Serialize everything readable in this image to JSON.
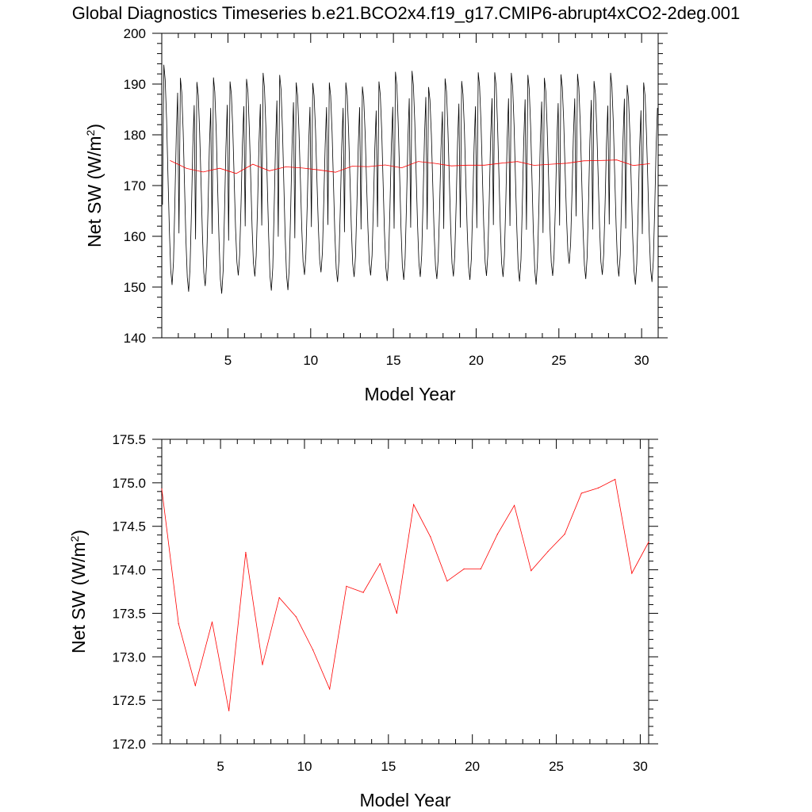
{
  "chart_data": [
    {
      "id": "monthly",
      "type": "line",
      "title": "Global Diagnostics Timeseries b.e21.BCO2x4.f19_g17.CMIP6-abrupt4xCO2-2deg.001",
      "xlabel": "Model Year",
      "ylabel": "Net SW (W/m2)",
      "xlim": [
        1.0,
        31.0
      ],
      "ylim": [
        140,
        200
      ],
      "xticks": [
        5,
        10,
        15,
        20,
        25,
        30
      ],
      "yticks": [
        140,
        150,
        160,
        170,
        180,
        190,
        200
      ],
      "grid": false,
      "series": [
        {
          "color": "#000000",
          "kind": "monthly",
          "peaks": [
            193.8,
            191.2,
            190.4,
            191.3,
            190.5,
            191.0,
            192.2,
            191.8,
            190.3,
            190.2,
            190.3,
            190.3,
            189.5,
            190.5,
            192.4,
            192.6,
            189.4,
            191.1,
            190.6,
            192.3,
            192.3,
            192.2,
            191.8,
            191.2,
            191.9,
            192.0,
            190.6,
            192.2,
            189.8,
            190.3
          ],
          "troughs": [
            150.4,
            149.1,
            150.2,
            148.7,
            152.3,
            152.1,
            149.3,
            149.4,
            152.4,
            152.9,
            151.0,
            152.0,
            152.3,
            151.2,
            151.4,
            152.0,
            151.6,
            152.1,
            151.4,
            152.2,
            152.0,
            151.1,
            150.5,
            152.2,
            154.6,
            151.6,
            152.4,
            152.1,
            150.5,
            151.0
          ]
        },
        {
          "color": "#ff0000",
          "kind": "annual",
          "x": [
            1.5,
            2.5,
            3.5,
            4.5,
            5.5,
            6.5,
            7.5,
            8.5,
            9.5,
            10.5,
            11.5,
            12.5,
            13.5,
            14.5,
            15.5,
            16.5,
            17.5,
            18.5,
            19.5,
            20.5,
            21.5,
            22.5,
            23.5,
            24.5,
            25.5,
            26.5,
            27.5,
            28.5,
            29.5,
            30.5
          ],
          "values": [
            174.93,
            173.38,
            172.67,
            173.4,
            172.38,
            174.2,
            172.91,
            173.68,
            173.46,
            173.08,
            172.63,
            173.81,
            173.74,
            174.07,
            173.5,
            174.75,
            174.38,
            173.87,
            174.01,
            174.01,
            174.41,
            174.74,
            173.99,
            174.21,
            174.41,
            174.88,
            174.94,
            175.04,
            173.96,
            174.32
          ]
        }
      ]
    },
    {
      "id": "annual",
      "type": "line",
      "title": "",
      "xlabel": "Model Year",
      "ylabel": "Net SW (W/m2)",
      "xlim": [
        1.5,
        30.5
      ],
      "ylim": [
        172.0,
        175.5
      ],
      "xticks": [
        5,
        10,
        15,
        20,
        25,
        30
      ],
      "yticks": [
        172.0,
        172.5,
        173.0,
        173.5,
        174.0,
        174.5,
        175.0,
        175.5
      ],
      "ytick_labels": [
        "172.0",
        "172.5",
        "173.0",
        "173.5",
        "174.0",
        "174.5",
        "175.0",
        "175.5"
      ],
      "grid": false,
      "series": [
        {
          "color": "#ff0000",
          "x": [
            1.5,
            2.5,
            3.5,
            4.5,
            5.5,
            6.5,
            7.5,
            8.5,
            9.5,
            10.5,
            11.5,
            12.5,
            13.5,
            14.5,
            15.5,
            16.5,
            17.5,
            18.5,
            19.5,
            20.5,
            21.5,
            22.5,
            23.5,
            24.5,
            25.5,
            26.5,
            27.5,
            28.5,
            29.5,
            30.5
          ],
          "values": [
            174.93,
            173.38,
            172.67,
            173.4,
            172.38,
            174.2,
            172.91,
            173.68,
            173.46,
            173.08,
            172.63,
            173.81,
            173.74,
            174.07,
            173.5,
            174.75,
            174.38,
            173.87,
            174.01,
            174.01,
            174.41,
            174.74,
            173.99,
            174.21,
            174.41,
            174.88,
            174.94,
            175.04,
            173.96,
            174.32
          ]
        }
      ]
    }
  ]
}
